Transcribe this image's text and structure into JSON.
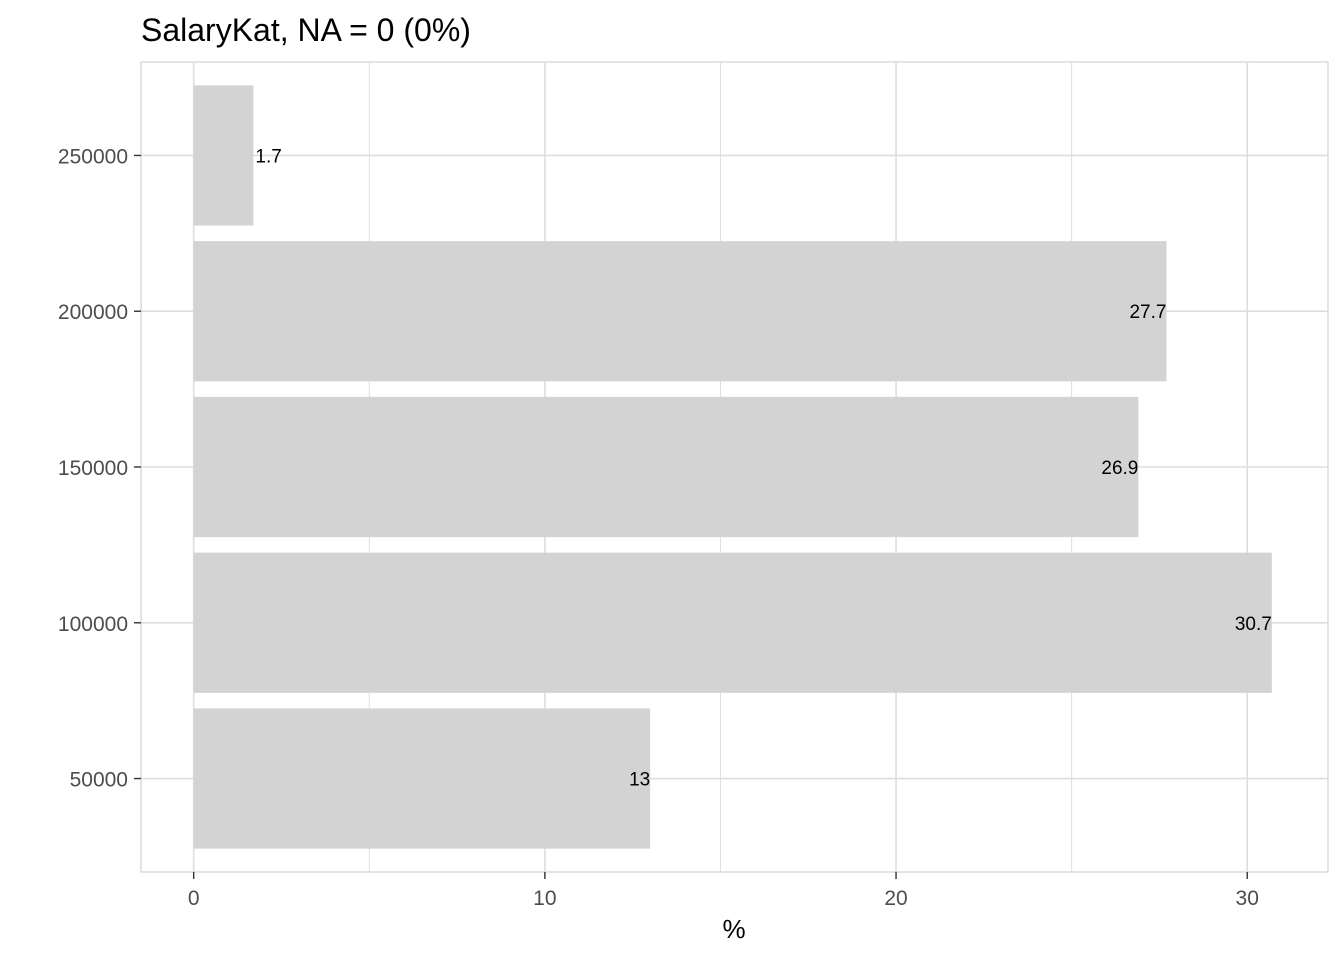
{
  "chart_data": {
    "type": "bar",
    "orientation": "horizontal",
    "title": "SalaryKat, NA = 0 (0%)",
    "xlabel": "%",
    "ylabel": "",
    "categories": [
      "50000",
      "100000",
      "150000",
      "200000",
      "250000"
    ],
    "values": [
      13,
      30.7,
      26.9,
      27.7,
      1.7
    ],
    "data_labels": [
      "13",
      "30.7",
      "26.9",
      "27.7",
      "1.7"
    ],
    "xlim": [
      -1.5,
      32.3
    ],
    "x_ticks": [
      0,
      10,
      20,
      30
    ],
    "x_tick_labels": [
      "0",
      "10",
      "20",
      "30"
    ],
    "grid": true,
    "bar_color": "#d3d3d3",
    "grid_color": "#dedede",
    "panel_border_color": "#d9d9d9"
  }
}
